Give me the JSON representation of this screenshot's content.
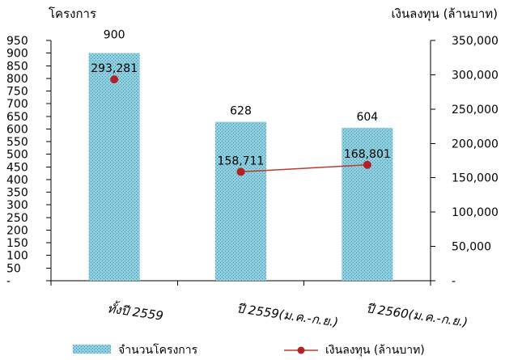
{
  "colors": {
    "bar_fill": "#8fcfe0",
    "bar_pattern_dot": "#3a8fa8",
    "line_color": "#c0392b",
    "marker_color": "#b22222",
    "text": "#000000"
  },
  "chart_data": {
    "type": "bar",
    "categories": [
      "ทั้งปี 2559",
      "ปี 2559(ม.ค.-ก.ย.)",
      "ปี 2560(ม.ค.-ก.ย.)"
    ],
    "series": [
      {
        "name": "จำนวนโครงการ",
        "type": "bar",
        "axis": "left",
        "values": [
          900,
          628,
          604
        ],
        "labels": [
          "900",
          "628",
          "604"
        ]
      },
      {
        "name": "เงินลงทุน (ล้านบาท)",
        "type": "line",
        "axis": "right",
        "values": [
          293281,
          158711,
          168801
        ],
        "labels": [
          "293,281",
          "158,711",
          "168,801"
        ],
        "connect_from_index": 1
      }
    ],
    "y_left": {
      "title": "โครงการ",
      "ylim": [
        0,
        950
      ],
      "ticks": [
        0,
        50,
        100,
        150,
        200,
        250,
        300,
        350,
        400,
        450,
        500,
        550,
        600,
        650,
        700,
        750,
        800,
        850,
        900,
        950
      ],
      "tick_labels": [
        "-",
        "50",
        "100",
        "150",
        "200",
        "250",
        "300",
        "350",
        "400",
        "450",
        "500",
        "550",
        "600",
        "650",
        "700",
        "750",
        "800",
        "850",
        "900",
        "950"
      ]
    },
    "y_right": {
      "title": "เงินลงทุน (ล้านบาท)",
      "ylim": [
        0,
        350000
      ],
      "ticks": [
        0,
        50000,
        100000,
        150000,
        200000,
        250000,
        300000,
        350000
      ],
      "tick_labels": [
        "-",
        "50,000",
        "100,000",
        "150,000",
        "200,000",
        "250,000",
        "300,000",
        "350,000"
      ]
    },
    "legend": {
      "placement": "bottom",
      "items": [
        "จำนวนโครงการ",
        "เงินลงทุน (ล้านบาท)"
      ]
    },
    "grid": false
  }
}
